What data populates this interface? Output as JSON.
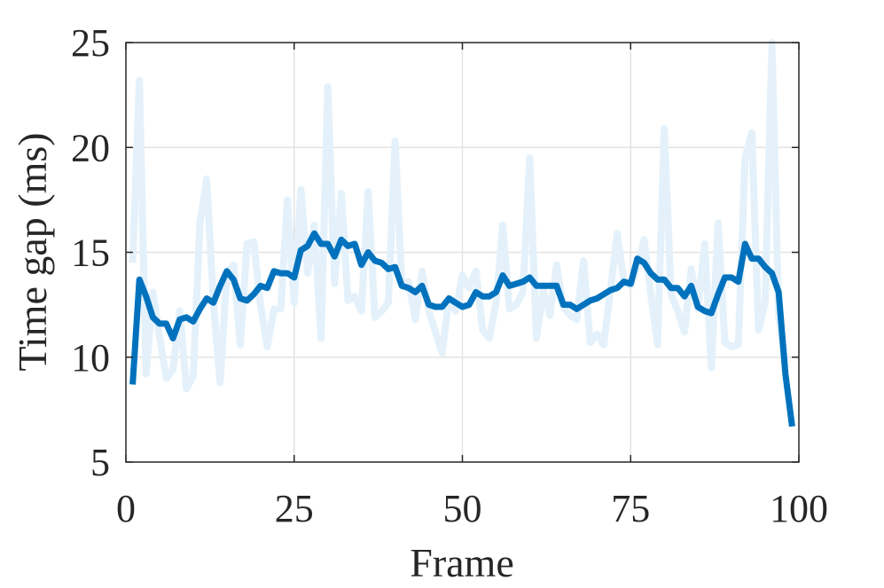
{
  "chart_data": {
    "type": "line",
    "xlabel": "Frame",
    "ylabel": "Time gap (ms)",
    "xlim": [
      0,
      100
    ],
    "ylim": [
      5,
      25
    ],
    "xticks": [
      0,
      25,
      50,
      75,
      100
    ],
    "yticks": [
      5,
      10,
      15,
      20,
      25
    ],
    "grid": true,
    "series": [
      {
        "color": "#e4f1fa",
        "x": [
          1,
          2,
          3,
          4,
          5,
          6,
          7,
          8,
          9,
          10,
          11,
          12,
          13,
          14,
          15,
          16,
          17,
          18,
          19,
          20,
          21,
          22,
          23,
          24,
          25,
          26,
          27,
          28,
          29,
          30,
          31,
          32,
          33,
          34,
          35,
          36,
          37,
          38,
          39,
          40,
          41,
          42,
          43,
          44,
          45,
          46,
          47,
          48,
          49,
          50,
          51,
          52,
          53,
          54,
          55,
          56,
          57,
          58,
          59,
          60,
          61,
          62,
          63,
          64,
          65,
          66,
          67,
          68,
          69,
          70,
          71,
          72,
          73,
          74,
          75,
          76,
          77,
          78,
          79,
          80,
          81,
          82,
          83,
          84,
          85,
          86,
          87,
          88,
          89,
          90,
          91,
          92,
          93,
          94,
          95,
          96,
          97,
          98
        ],
        "values": [
          14.5,
          23.2,
          9.2,
          13.1,
          11.0,
          9.0,
          9.4,
          12.2,
          8.5,
          9.1,
          16.4,
          18.5,
          12.6,
          8.8,
          14.0,
          14.4,
          10.6,
          15.4,
          15.5,
          12.5,
          10.5,
          12.3,
          12.3,
          17.5,
          12.6,
          18.0,
          14.0,
          16.3,
          10.9,
          22.9,
          13.5,
          17.8,
          12.7,
          12.9,
          12.2,
          17.9,
          11.9,
          12.2,
          12.6,
          20.3,
          13.5,
          13.6,
          11.8,
          14.1,
          12.2,
          11.2,
          10.2,
          12.8,
          12.2,
          13.9,
          13.3,
          14.1,
          11.3,
          10.9,
          12.6,
          16.3,
          12.3,
          12.5,
          13.1,
          19.5,
          10.9,
          13.2,
          12.0,
          14.4,
          12.4,
          12.0,
          11.8,
          14.6,
          10.7,
          11.1,
          10.6,
          13.2,
          15.9,
          13.6,
          13.4,
          14.3,
          15.6,
          13.0,
          10.6,
          20.9,
          13.0,
          12.2,
          11.2,
          14.2,
          12.3,
          15.4,
          9.5,
          16.4,
          10.7,
          10.5,
          10.6,
          19.5,
          20.7,
          11.3,
          12.6,
          25.0,
          12.0,
          9.6
        ]
      },
      {
        "color": "#0072bd",
        "x": [
          1,
          2,
          3,
          4,
          5,
          6,
          7,
          8,
          9,
          10,
          11,
          12,
          13,
          14,
          15,
          16,
          17,
          18,
          19,
          20,
          21,
          22,
          23,
          24,
          25,
          26,
          27,
          28,
          29,
          30,
          31,
          32,
          33,
          34,
          35,
          36,
          37,
          38,
          39,
          40,
          41,
          42,
          43,
          44,
          45,
          46,
          47,
          48,
          49,
          50,
          51,
          52,
          53,
          54,
          55,
          56,
          57,
          58,
          59,
          60,
          61,
          62,
          63,
          64,
          65,
          66,
          67,
          68,
          69,
          70,
          71,
          72,
          73,
          74,
          75,
          76,
          77,
          78,
          79,
          80,
          81,
          82,
          83,
          84,
          85,
          86,
          87,
          88,
          89,
          90,
          91,
          92,
          93,
          94,
          95,
          96,
          97,
          98,
          99
        ],
        "values": [
          8.7,
          13.7,
          12.9,
          11.9,
          11.6,
          11.6,
          10.9,
          11.8,
          11.9,
          11.7,
          12.3,
          12.8,
          12.6,
          13.4,
          14.1,
          13.7,
          12.8,
          12.7,
          13.0,
          13.4,
          13.3,
          14.1,
          14.0,
          14.0,
          13.8,
          15.1,
          15.3,
          15.9,
          15.4,
          15.4,
          14.8,
          15.6,
          15.3,
          15.4,
          14.4,
          15.0,
          14.6,
          14.5,
          14.2,
          14.3,
          13.4,
          13.3,
          13.1,
          13.4,
          12.5,
          12.4,
          12.4,
          12.8,
          12.6,
          12.4,
          12.5,
          13.1,
          12.9,
          12.9,
          13.1,
          13.9,
          13.4,
          13.5,
          13.6,
          13.8,
          13.4,
          13.4,
          13.4,
          13.4,
          12.5,
          12.5,
          12.3,
          12.5,
          12.7,
          12.8,
          13.0,
          13.2,
          13.3,
          13.6,
          13.5,
          14.7,
          14.5,
          14.0,
          13.7,
          13.7,
          13.3,
          13.3,
          12.9,
          13.4,
          12.4,
          12.2,
          12.1,
          13.0,
          13.8,
          13.8,
          13.6,
          15.4,
          14.7,
          14.7,
          14.3,
          14.0,
          13.1,
          9.2,
          6.7
        ]
      }
    ]
  }
}
